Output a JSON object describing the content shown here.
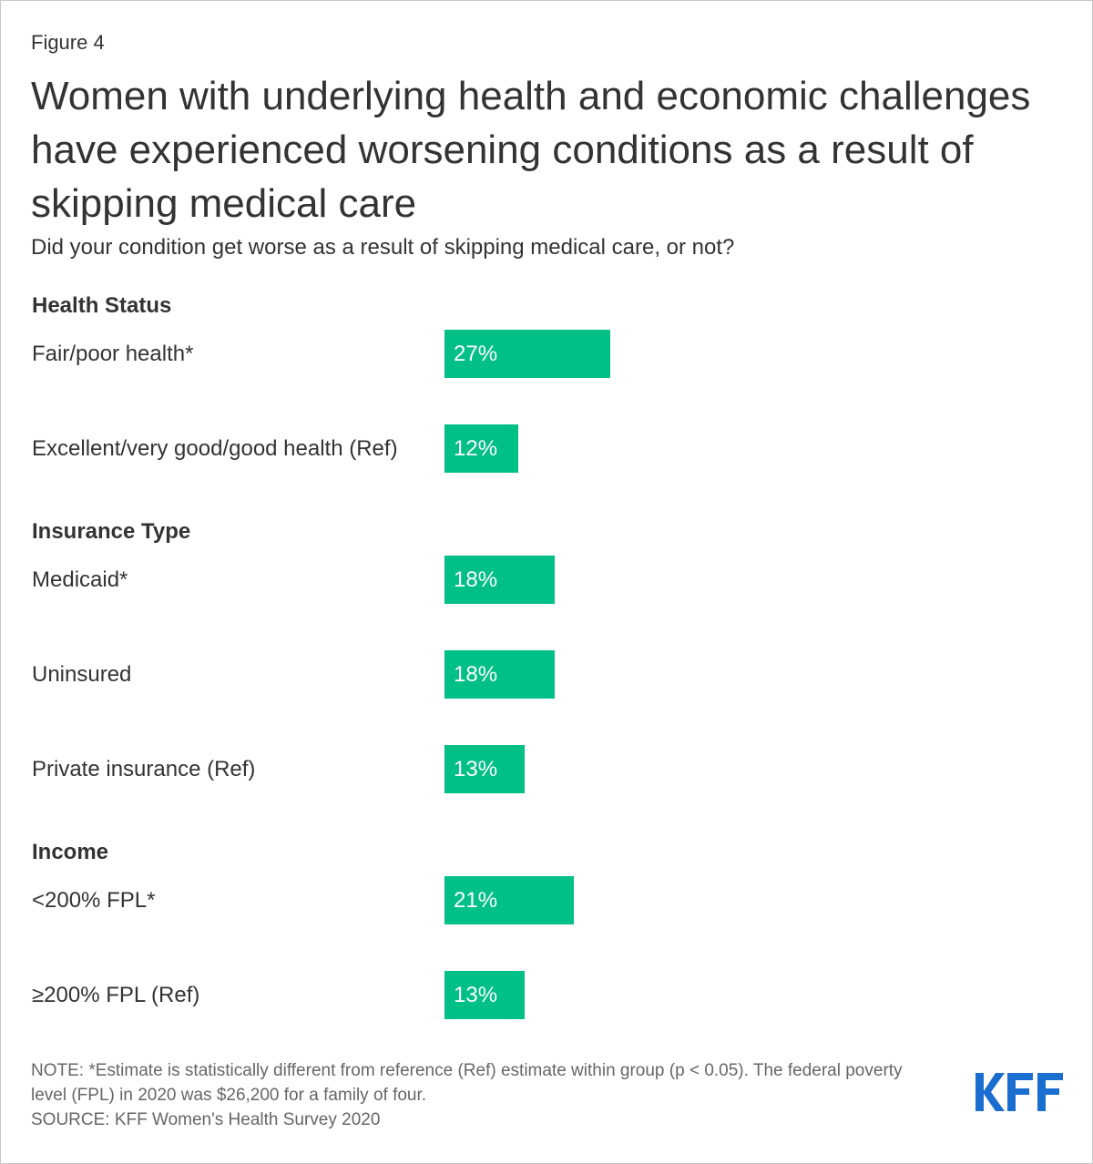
{
  "figure_label": "Figure 4",
  "title": "Women with underlying health and economic challenges have experienced worsening conditions as a result of skipping medical care",
  "subtitle": "Did your condition get worse as a result of skipping medical care, or not?",
  "chart_data": {
    "type": "bar",
    "orientation": "horizontal",
    "title": "Women with underlying health and economic challenges have experienced worsening conditions as a result of skipping medical care",
    "subtitle": "Did your condition get worse as a result of skipping medical care, or not?",
    "value_suffix": "%",
    "bar_color": "#00bf87",
    "value_label_color": "#ffffff",
    "groups": [
      {
        "name": "Health Status",
        "categories": [
          "Fair/poor health*",
          "Excellent/very good/good health (Ref)"
        ],
        "values": [
          27,
          12
        ],
        "labels": [
          "27%",
          "12%"
        ]
      },
      {
        "name": "Insurance Type",
        "categories": [
          "Medicaid*",
          "Uninsured",
          "Private insurance (Ref)"
        ],
        "values": [
          18,
          18,
          13
        ],
        "labels": [
          "18%",
          "18%",
          "13%"
        ]
      },
      {
        "name": "Income",
        "categories": [
          "<200% FPL*",
          "≥200% FPL (Ref)"
        ],
        "values": [
          21,
          13
        ],
        "labels": [
          "21%",
          "13%"
        ]
      }
    ]
  },
  "note": "NOTE: *Estimate is statistically different from reference (Ref) estimate within group (p < 0.05). The federal poverty level (FPL) in 2020 was $26,200 for a family of four.",
  "source": "SOURCE: KFF Women's Health Survey 2020",
  "logo_text": "KFF",
  "logo_color": "#1a6ecf"
}
